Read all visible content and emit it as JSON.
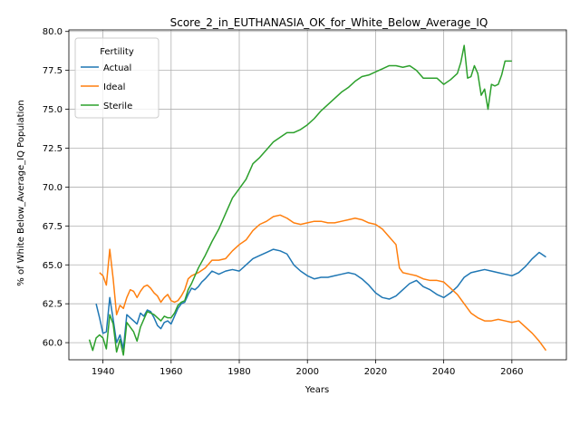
{
  "chart_data": {
    "type": "line",
    "title": "Score_2_in_EUTHANASIA_OK_for_White_Below_Average_IQ",
    "xlabel": "Years",
    "ylabel": "% of White Below_Average_IQ Population",
    "xlim": [
      1930,
      2076
    ],
    "ylim": [
      58.9,
      80.1
    ],
    "xticks": [
      1940,
      1960,
      1980,
      2000,
      2020,
      2040,
      2060
    ],
    "yticks": [
      60.0,
      62.5,
      65.0,
      67.5,
      70.0,
      72.5,
      75.0,
      77.5,
      80.0
    ],
    "xtick_labels": [
      "1940",
      "1960",
      "1980",
      "2000",
      "2020",
      "2040",
      "2060"
    ],
    "ytick_labels": [
      "60.0",
      "62.5",
      "65.0",
      "67.5",
      "70.0",
      "72.5",
      "75.0",
      "77.5",
      "80.0"
    ],
    "grid": true,
    "legend": {
      "title": "Fertility",
      "location": "top-left"
    },
    "series": [
      {
        "name": "Actual",
        "color": "#1f77b4",
        "x": [
          1938,
          1939,
          1940,
          1941,
          1942,
          1943,
          1944,
          1945,
          1946,
          1947,
          1948,
          1949,
          1950,
          1951,
          1952,
          1953,
          1954,
          1955,
          1956,
          1957,
          1958,
          1959,
          1960,
          1961,
          1962,
          1963,
          1964,
          1965,
          1966,
          1967,
          1968,
          1969,
          1970,
          1972,
          1974,
          1976,
          1978,
          1980,
          1982,
          1984,
          1986,
          1988,
          1990,
          1992,
          1994,
          1996,
          1998,
          2000,
          2002,
          2004,
          2006,
          2008,
          2010,
          2012,
          2014,
          2016,
          2018,
          2020,
          2022,
          2024,
          2026,
          2028,
          2030,
          2032,
          2034,
          2036,
          2038,
          2040,
          2042,
          2044,
          2046,
          2048,
          2050,
          2052,
          2054,
          2056,
          2058,
          2060,
          2062,
          2064,
          2066,
          2068,
          2070
        ],
        "y": [
          62.5,
          61.6,
          60.6,
          60.7,
          62.9,
          61.5,
          60.0,
          60.5,
          59.6,
          61.8,
          61.6,
          61.4,
          61.2,
          61.9,
          61.7,
          62.1,
          62.0,
          61.6,
          61.1,
          60.9,
          61.3,
          61.4,
          61.2,
          61.7,
          62.2,
          62.5,
          62.6,
          63.1,
          63.5,
          63.4,
          63.6,
          63.9,
          64.1,
          64.6,
          64.4,
          64.6,
          64.7,
          64.6,
          65.0,
          65.4,
          65.6,
          65.8,
          66.0,
          65.9,
          65.7,
          65.0,
          64.6,
          64.3,
          64.1,
          64.2,
          64.2,
          64.3,
          64.4,
          64.5,
          64.4,
          64.1,
          63.7,
          63.2,
          62.9,
          62.8,
          63.0,
          63.4,
          63.8,
          64.0,
          63.6,
          63.4,
          63.1,
          62.9,
          63.2,
          63.6,
          64.2,
          64.5,
          64.6,
          64.7,
          64.6,
          64.5,
          64.4,
          64.3,
          64.5,
          64.9,
          65.4,
          65.8,
          65.5
        ],
        "y_detail": "see script"
      },
      {
        "name": "Ideal",
        "color": "#ff7f0e",
        "x": [
          1939,
          1940,
          1941,
          1942,
          1943,
          1944,
          1945,
          1946,
          1947,
          1948,
          1949,
          1950,
          1951,
          1952,
          1953,
          1954,
          1955,
          1956,
          1957,
          1958,
          1959,
          1960,
          1961,
          1962,
          1963,
          1964,
          1965,
          1966,
          1968,
          1970,
          1972,
          1974,
          1976,
          1978,
          1980,
          1982,
          1984,
          1986,
          1988,
          1990,
          1992,
          1994,
          1996,
          1998,
          2000,
          2002,
          2004,
          2006,
          2008,
          2010,
          2012,
          2014,
          2016,
          2018,
          2020,
          2022,
          2024,
          2026,
          2027,
          2028,
          2030,
          2032,
          2034,
          2036,
          2038,
          2040,
          2042,
          2044,
          2046,
          2048,
          2050,
          2052,
          2054,
          2056,
          2058,
          2060,
          2062,
          2064,
          2066,
          2068,
          2070
        ],
        "y": [
          64.5,
          64.3,
          63.7,
          66.0,
          64.1,
          61.8,
          62.4,
          62.2,
          62.9,
          63.4,
          63.3,
          62.9,
          63.3,
          63.6,
          63.7,
          63.5,
          63.2,
          63.0,
          62.6,
          62.9,
          63.1,
          62.7,
          62.6,
          62.7,
          63.0,
          63.4,
          64.1,
          64.3,
          64.5,
          64.8,
          65.3,
          65.3,
          65.4,
          65.9,
          66.3,
          66.6,
          67.2,
          67.6,
          67.8,
          68.1,
          68.2,
          68.0,
          67.7,
          67.6,
          67.7,
          67.8,
          67.8,
          67.7,
          67.7,
          67.8,
          67.9,
          68.0,
          67.9,
          67.7,
          67.6,
          67.3,
          66.8,
          66.3,
          64.8,
          64.5,
          64.4,
          64.3,
          64.1,
          64.0,
          64.0,
          63.9,
          63.5,
          63.1,
          62.5,
          61.9,
          61.6,
          61.4,
          61.4,
          61.5,
          61.4,
          61.3,
          61.4,
          61.0,
          60.6,
          60.1,
          59.5
        ]
      },
      {
        "name": "Sterile",
        "color": "#2ca02c",
        "x": [
          1936,
          1937,
          1938,
          1939,
          1940,
          1941,
          1942,
          1943,
          1944,
          1945,
          1946,
          1947,
          1948,
          1949,
          1950,
          1951,
          1952,
          1953,
          1954,
          1955,
          1956,
          1957,
          1958,
          1959,
          1960,
          1961,
          1962,
          1963,
          1964,
          1965,
          1966,
          1968,
          1970,
          1972,
          1974,
          1976,
          1978,
          1980,
          1982,
          1984,
          1986,
          1988,
          1990,
          1992,
          1994,
          1996,
          1998,
          2000,
          2002,
          2004,
          2006,
          2008,
          2010,
          2012,
          2014,
          2016,
          2018,
          2020,
          2022,
          2024,
          2026,
          2028,
          2030,
          2032,
          2034,
          2036,
          2038,
          2040,
          2042,
          2044,
          2045,
          2046,
          2047,
          2048,
          2049,
          2050,
          2051,
          2052,
          2053,
          2054,
          2055,
          2056,
          2057,
          2058,
          2059,
          2060
        ],
        "y": [
          60.2,
          59.5,
          60.3,
          60.5,
          60.3,
          59.6,
          61.8,
          61.2,
          59.4,
          60.2,
          59.2,
          61.3,
          61.0,
          60.7,
          60.1,
          61.0,
          61.5,
          62.0,
          61.9,
          61.8,
          61.6,
          61.4,
          61.7,
          61.6,
          61.6,
          61.9,
          62.4,
          62.6,
          62.7,
          63.4,
          63.8,
          64.8,
          65.6,
          66.5,
          67.3,
          68.3,
          69.3,
          69.9,
          70.5,
          71.5,
          71.9,
          72.4,
          72.9,
          73.2,
          73.5,
          73.5,
          73.7,
          74.0,
          74.4,
          74.9,
          75.3,
          75.7,
          76.1,
          76.4,
          76.8,
          77.1,
          77.2,
          77.4,
          77.6,
          77.8,
          77.8,
          77.7,
          77.8,
          77.5,
          77.0,
          77.0,
          77.0,
          76.6,
          76.9,
          77.3,
          78.0,
          79.1,
          77.0,
          77.1,
          77.8,
          77.3,
          75.9,
          76.3,
          75.0,
          76.6,
          76.5,
          76.6,
          77.2,
          78.1,
          78.1,
          78.1
        ]
      }
    ]
  }
}
